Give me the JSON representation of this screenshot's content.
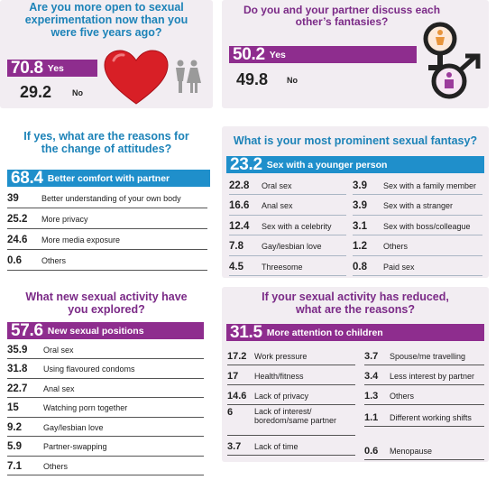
{
  "chart_data": [
    {
      "type": "table",
      "title": "Are you more open to sexual experimentation now than you were five years ago?",
      "categories": [
        "Yes",
        "No"
      ],
      "values": [
        70.8,
        29.2
      ]
    },
    {
      "type": "table",
      "title": "Do you and your partner discuss each other’s fantasies?",
      "categories": [
        "Yes",
        "No"
      ],
      "values": [
        50.2,
        49.8
      ]
    },
    {
      "type": "table",
      "title": "If yes, what are the reasons for the change of attitudes?",
      "categories": [
        "Better comfort with partner",
        "Better understanding of your own body",
        "More privacy",
        "More media exposure",
        "Others"
      ],
      "values": [
        68.4,
        39,
        25.2,
        24.6,
        0.6
      ]
    },
    {
      "type": "table",
      "title": "What is your most prominent sexual fantasy?",
      "categories": [
        "Sex with a younger person",
        "Oral sex",
        "Anal sex",
        "Sex with a celebrity",
        "Gay/lesbian love",
        "Threesome",
        "Sex with a family member",
        "Sex with a stranger",
        "Sex with boss/colleague",
        "Others",
        "Paid sex"
      ],
      "values": [
        23.2,
        22.8,
        16.6,
        12.4,
        7.8,
        4.5,
        3.9,
        3.9,
        3.1,
        1.2,
        0.8
      ]
    },
    {
      "type": "table",
      "title": "What new sexual activity have you explored?",
      "categories": [
        "New sexual positions",
        "Oral sex",
        "Using flavoured condoms",
        "Anal sex",
        "Watching porn together",
        "Gay/lesbian love",
        "Partner-swapping",
        "Others"
      ],
      "values": [
        57.6,
        35.9,
        31.8,
        22.7,
        15,
        9.2,
        5.9,
        7.1
      ]
    },
    {
      "type": "table",
      "title": "If your sexual activity has reduced, what are the reasons?",
      "categories": [
        "More attention to children",
        "Work pressure",
        "Health/fitness",
        "Lack of privacy",
        "Lack of interest/ boredom/same partner",
        "Lack of time",
        "Spouse/me travelling",
        "Less interest by partner",
        "Others",
        "Different working shifts",
        "Menopause"
      ],
      "values": [
        31.5,
        17.2,
        17,
        14.6,
        6,
        3.7,
        3.7,
        3.4,
        1.3,
        1.1,
        0.6
      ]
    }
  ],
  "p1": {
    "q1": "Are you more open to sexual",
    "q2": "experimentation now than you",
    "q3": "were five years ago?",
    "yes_val": "70.8",
    "yes_lab": "Yes",
    "no_val": "29.2",
    "no_lab": "No",
    "icons": [
      "heart-icon",
      "couple-icon"
    ]
  },
  "p2": {
    "q1": "Do you and your partner discuss each",
    "q2": "other’s fantasies?",
    "yes_val": "50.2",
    "yes_lab": "Yes",
    "no_val": "49.8",
    "no_lab": "No",
    "icons": [
      "female-symbol-icon",
      "male-symbol-icon"
    ]
  },
  "p3": {
    "q1": "If yes, what are the reasons for",
    "q2": "the change of attitudes?",
    "head_val": "68.4",
    "head_lab": "Better comfort with partner",
    "rows": [
      {
        "v": "39",
        "l": "Better understanding of your own body"
      },
      {
        "v": "25.2",
        "l": "More privacy"
      },
      {
        "v": "24.6",
        "l": "More media exposure"
      },
      {
        "v": "0.6",
        "l": "Others"
      }
    ]
  },
  "p4": {
    "q1": "What is your most prominent sexual fantasy?",
    "head_val": "23.2",
    "head_lab": "Sex with a younger person",
    "left": [
      {
        "v": "22.8",
        "l": "Oral sex"
      },
      {
        "v": "16.6",
        "l": "Anal sex"
      },
      {
        "v": "12.4",
        "l": "Sex with a celebrity"
      },
      {
        "v": "7.8",
        "l": "Gay/lesbian love"
      },
      {
        "v": "4.5",
        "l": "Threesome"
      }
    ],
    "right": [
      {
        "v": "3.9",
        "l": "Sex with a family member"
      },
      {
        "v": "3.9",
        "l": "Sex with a stranger"
      },
      {
        "v": "3.1",
        "l": "Sex with boss/colleague"
      },
      {
        "v": "1.2",
        "l": "Others"
      },
      {
        "v": "0.8",
        "l": "Paid sex"
      }
    ]
  },
  "p5": {
    "q1": "What new sexual activity have",
    "q2": "you explored?",
    "head_val": "57.6",
    "head_lab": "New sexual positions",
    "rows": [
      {
        "v": "35.9",
        "l": "Oral sex"
      },
      {
        "v": "31.8",
        "l": "Using flavoured condoms"
      },
      {
        "v": "22.7",
        "l": "Anal sex"
      },
      {
        "v": "15",
        "l": "Watching porn together"
      },
      {
        "v": "9.2",
        "l": "Gay/lesbian love"
      },
      {
        "v": "5.9",
        "l": "Partner-swapping"
      },
      {
        "v": "7.1",
        "l": "Others"
      }
    ]
  },
  "p6": {
    "q1": "If your sexual activity has reduced,",
    "q2": "what are the reasons?",
    "head_val": "31.5",
    "head_lab": "More attention to children",
    "left": [
      {
        "v": "17.2",
        "l": "Work pressure"
      },
      {
        "v": "17",
        "l": "Health/fitness"
      },
      {
        "v": "14.6",
        "l": "Lack of privacy"
      },
      {
        "v": "6",
        "l": "Lack of interest/",
        "l2": "boredom/same partner"
      },
      {
        "v": "3.7",
        "l": "Lack of time"
      }
    ],
    "right": [
      {
        "v": "3.7",
        "l": "Spouse/me travelling"
      },
      {
        "v": "3.4",
        "l": "Less interest by partner"
      },
      {
        "v": "1.3",
        "l": "Others"
      },
      {
        "v": "1.1",
        "l": "Different working shifts"
      },
      {
        "v": "0.6",
        "l": "Menopause"
      }
    ]
  },
  "colors": {
    "purple": "#8e2d8e",
    "blue": "#1f8fcb",
    "panel": "#f2edf2",
    "heart": "#d81f26"
  }
}
